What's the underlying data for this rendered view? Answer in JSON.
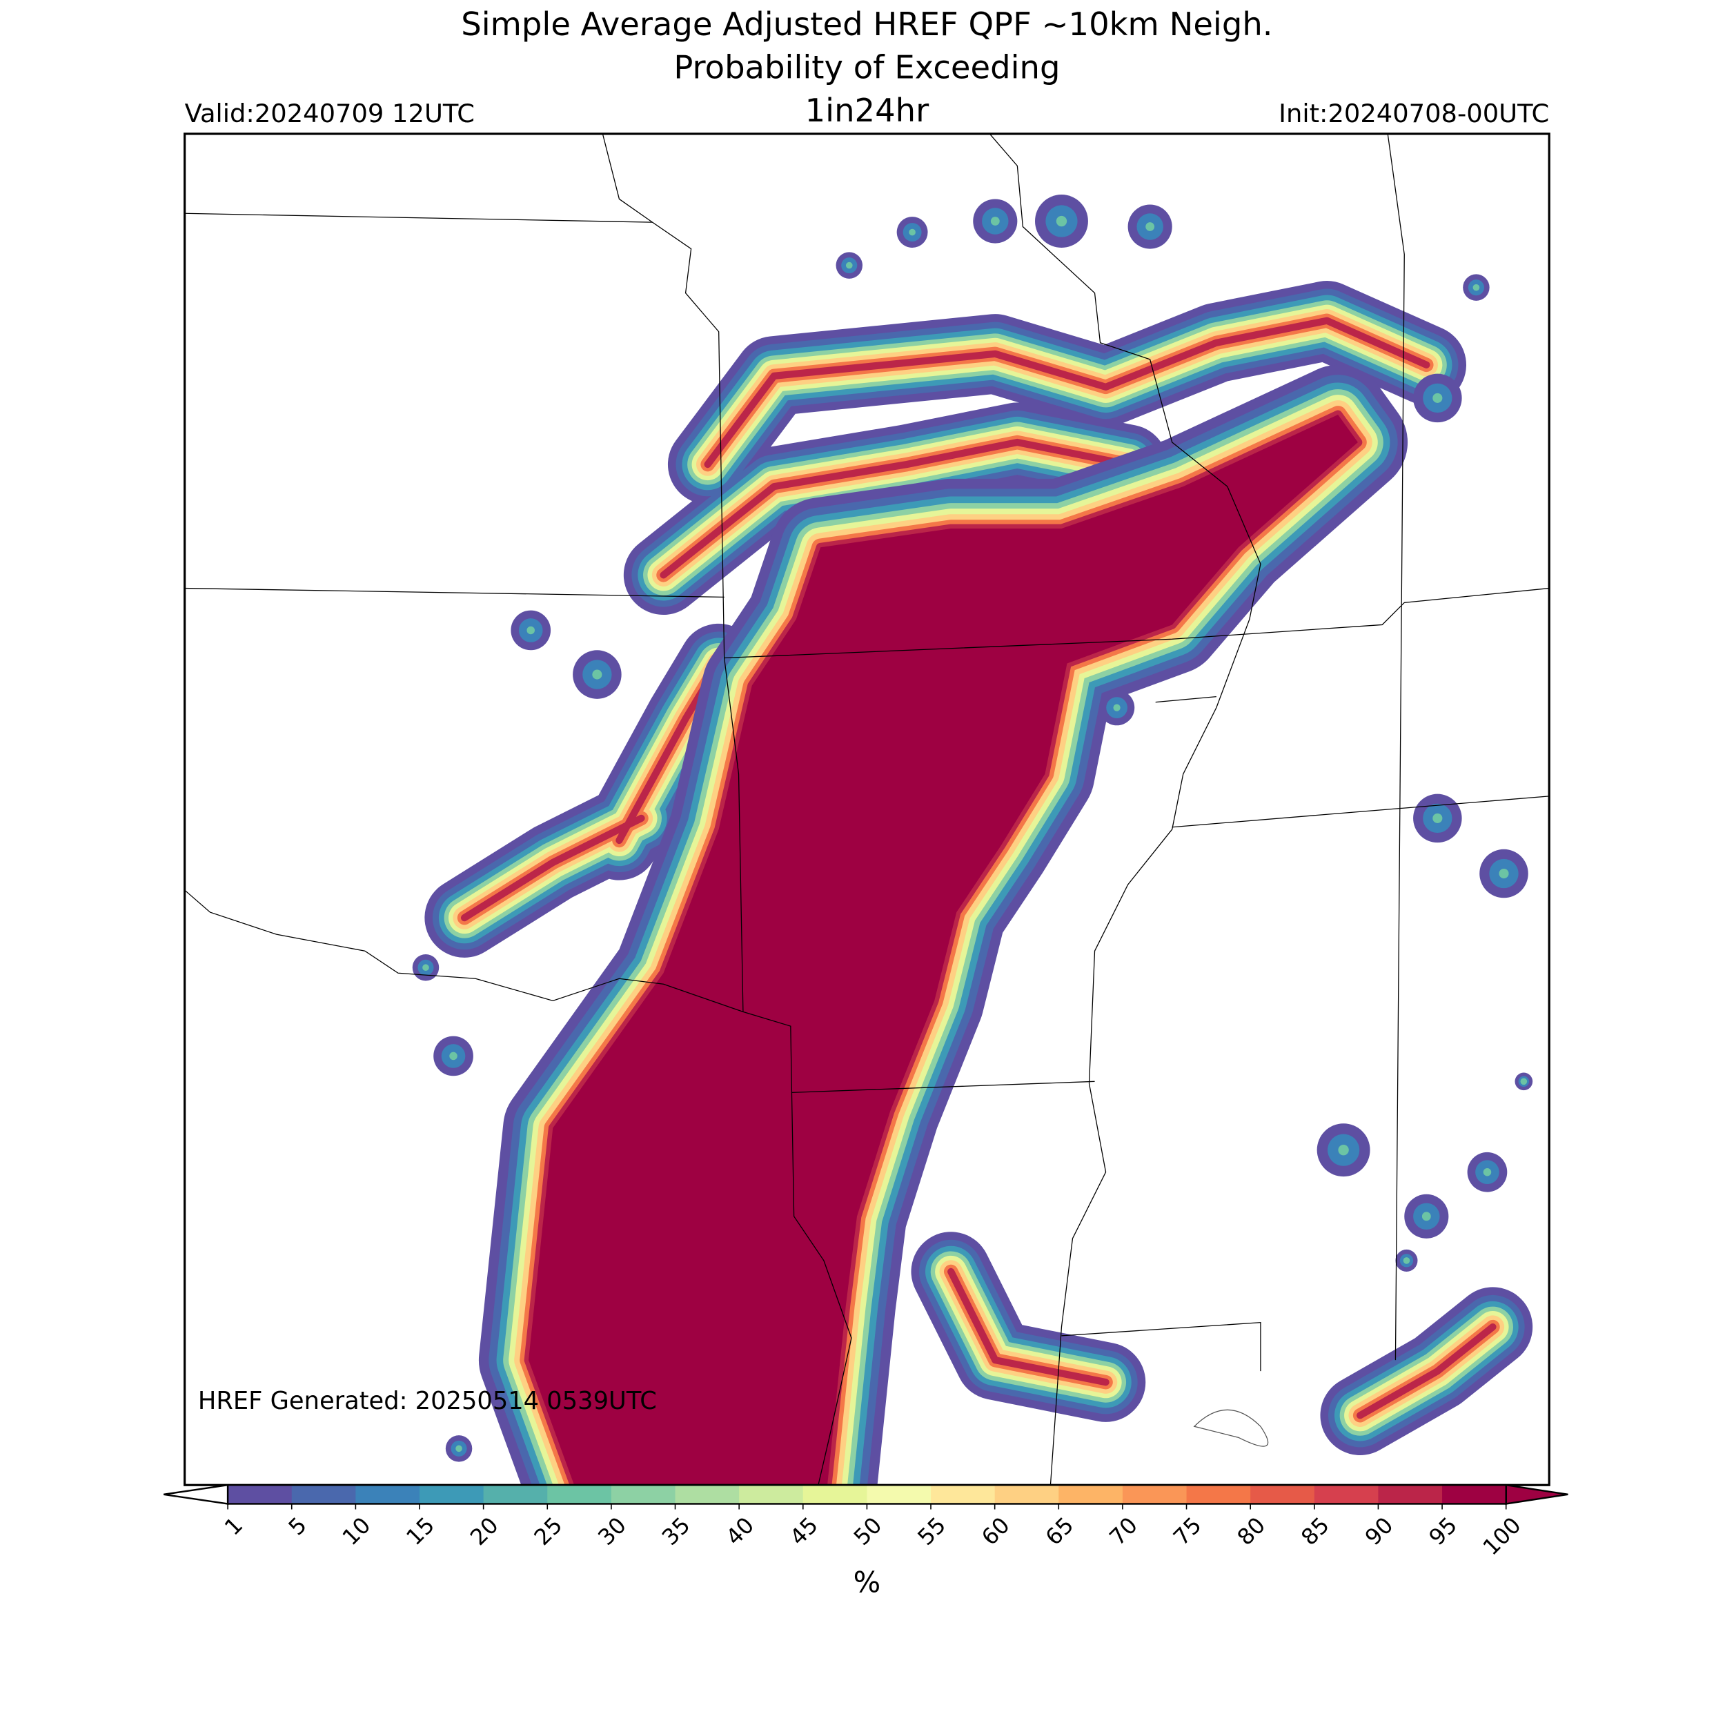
{
  "header": {
    "title_line1": "Simple Average Adjusted HREF QPF ~10km Neigh.",
    "title_line2": "Probability of Exceeding",
    "threshold": "1in24hr",
    "valid": "Valid:20240709 12UTC",
    "init": "Init:20240708-00UTC"
  },
  "footer_note": "HREF Generated: 20250514 0539UTC",
  "colorbar": {
    "ticks": [
      1,
      5,
      10,
      15,
      20,
      25,
      30,
      35,
      40,
      45,
      50,
      55,
      60,
      65,
      70,
      75,
      80,
      85,
      90,
      95,
      100
    ],
    "colors": [
      "#5e4fa2",
      "#4a68ad",
      "#3b82b9",
      "#3d9ab7",
      "#55b0ab",
      "#6cc4a4",
      "#8dd1a4",
      "#aedea2",
      "#cdeb9e",
      "#e6f598",
      "#f4faad",
      "#fee79a",
      "#fed083",
      "#fdb466",
      "#fa9657",
      "#f47748",
      "#e65a48",
      "#d6404e",
      "#bb2549",
      "#9e0142"
    ],
    "label": "%"
  }
}
